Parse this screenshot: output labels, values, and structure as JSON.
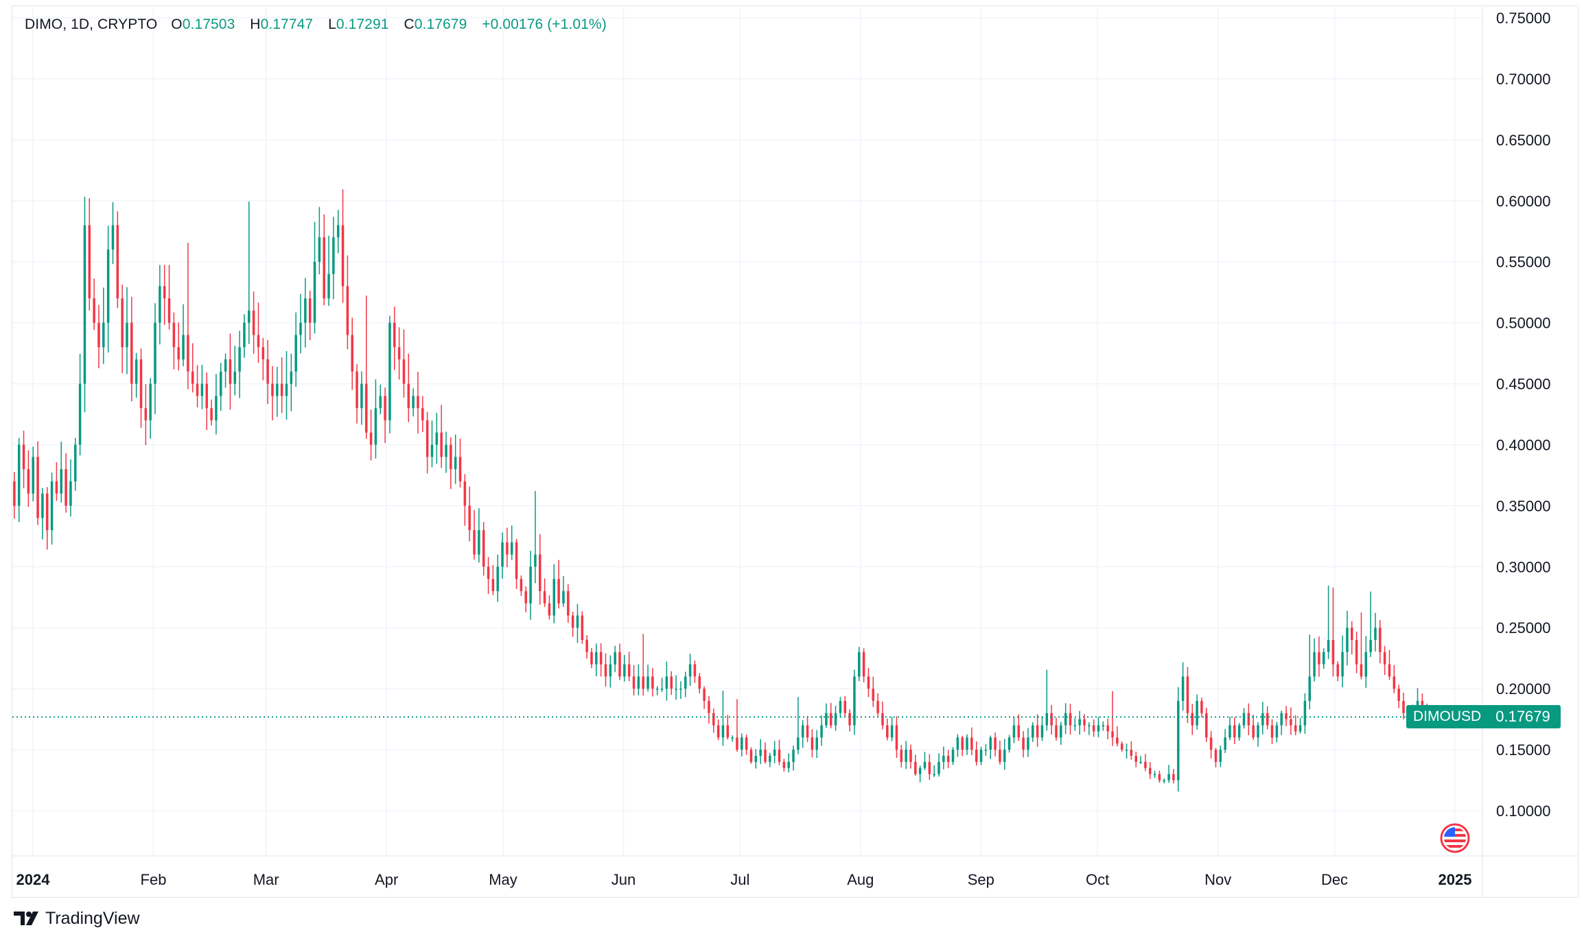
{
  "legend": {
    "symbol": "DIMO, 1D, CRYPTO",
    "o_label": "O",
    "o_value": "0.17503",
    "h_label": "H",
    "h_value": "0.17747",
    "l_label": "L",
    "l_value": "0.17291",
    "c_label": "C",
    "c_value": "0.17679",
    "change": "+0.00176 (+1.01%)"
  },
  "price_badge": {
    "label": "DIMOUSD",
    "value": "0.17679"
  },
  "brand": {
    "name": "TradingView"
  },
  "colors": {
    "up": "#089981",
    "down": "#F23645",
    "grid": "#f0f3fa",
    "text": "#131722"
  },
  "chart_data": {
    "type": "candlestick",
    "y_ticks": [
      "0.75000",
      "0.70000",
      "0.65000",
      "0.60000",
      "0.55000",
      "0.50000",
      "0.45000",
      "0.40000",
      "0.35000",
      "0.30000",
      "0.25000",
      "0.20000",
      "0.15000",
      "0.10000"
    ],
    "ylim": [
      0.07,
      0.76
    ],
    "x_labels": [
      {
        "label": "2024",
        "day": 0,
        "bold": true
      },
      {
        "label": "Feb",
        "day": 31
      },
      {
        "label": "Mar",
        "day": 60
      },
      {
        "label": "Apr",
        "day": 91
      },
      {
        "label": "May",
        "day": 121
      },
      {
        "label": "Jun",
        "day": 152
      },
      {
        "label": "Jul",
        "day": 182
      },
      {
        "label": "Aug",
        "day": 213
      },
      {
        "label": "Sep",
        "day": 244
      },
      {
        "label": "Oct",
        "day": 274
      },
      {
        "label": "Nov",
        "day": 305
      },
      {
        "label": "Dec",
        "day": 335
      },
      {
        "label": "2025",
        "day": 366,
        "bold": true
      }
    ],
    "last_price": 0.17679,
    "closes": [
      0.37,
      0.35,
      0.4,
      0.38,
      0.36,
      0.39,
      0.34,
      0.36,
      0.33,
      0.37,
      0.36,
      0.38,
      0.35,
      0.37,
      0.4,
      0.45,
      0.58,
      0.52,
      0.5,
      0.48,
      0.5,
      0.56,
      0.58,
      0.52,
      0.48,
      0.5,
      0.45,
      0.47,
      0.43,
      0.42,
      0.45,
      0.5,
      0.53,
      0.52,
      0.5,
      0.48,
      0.47,
      0.49,
      0.46,
      0.45,
      0.44,
      0.45,
      0.43,
      0.42,
      0.44,
      0.46,
      0.47,
      0.45,
      0.46,
      0.48,
      0.5,
      0.51,
      0.49,
      0.48,
      0.47,
      0.45,
      0.44,
      0.45,
      0.44,
      0.45,
      0.46,
      0.49,
      0.5,
      0.52,
      0.5,
      0.55,
      0.57,
      0.52,
      0.54,
      0.57,
      0.58,
      0.53,
      0.49,
      0.46,
      0.43,
      0.45,
      0.41,
      0.4,
      0.43,
      0.44,
      0.42,
      0.5,
      0.48,
      0.47,
      0.45,
      0.43,
      0.44,
      0.43,
      0.42,
      0.39,
      0.4,
      0.41,
      0.39,
      0.4,
      0.38,
      0.39,
      0.37,
      0.35,
      0.33,
      0.31,
      0.33,
      0.3,
      0.29,
      0.28,
      0.3,
      0.32,
      0.31,
      0.32,
      0.29,
      0.28,
      0.27,
      0.3,
      0.31,
      0.28,
      0.27,
      0.26,
      0.29,
      0.27,
      0.28,
      0.26,
      0.25,
      0.26,
      0.24,
      0.23,
      0.22,
      0.23,
      0.22,
      0.21,
      0.22,
      0.23,
      0.21,
      0.22,
      0.21,
      0.2,
      0.21,
      0.2,
      0.21,
      0.2,
      0.2,
      0.2,
      0.21,
      0.2,
      0.2,
      0.2,
      0.21,
      0.22,
      0.21,
      0.2,
      0.19,
      0.18,
      0.17,
      0.16,
      0.17,
      0.16,
      0.16,
      0.15,
      0.16,
      0.15,
      0.14,
      0.145,
      0.15,
      0.14,
      0.145,
      0.15,
      0.14,
      0.135,
      0.14,
      0.15,
      0.16,
      0.17,
      0.16,
      0.15,
      0.16,
      0.17,
      0.18,
      0.17,
      0.18,
      0.19,
      0.18,
      0.17,
      0.21,
      0.23,
      0.21,
      0.2,
      0.19,
      0.18,
      0.17,
      0.16,
      0.17,
      0.15,
      0.14,
      0.15,
      0.14,
      0.13,
      0.135,
      0.14,
      0.13,
      0.13,
      0.14,
      0.145,
      0.14,
      0.15,
      0.16,
      0.15,
      0.16,
      0.15,
      0.14,
      0.15,
      0.15,
      0.16,
      0.15,
      0.14,
      0.15,
      0.16,
      0.17,
      0.16,
      0.15,
      0.16,
      0.17,
      0.16,
      0.17,
      0.18,
      0.17,
      0.16,
      0.17,
      0.18,
      0.17,
      0.17,
      0.175,
      0.17,
      0.17,
      0.165,
      0.17,
      0.17,
      0.165,
      0.16,
      0.155,
      0.15,
      0.15,
      0.145,
      0.14,
      0.14,
      0.135,
      0.13,
      0.13,
      0.125,
      0.125,
      0.13,
      0.125,
      0.19,
      0.21,
      0.18,
      0.17,
      0.19,
      0.18,
      0.16,
      0.15,
      0.14,
      0.15,
      0.16,
      0.17,
      0.16,
      0.17,
      0.18,
      0.17,
      0.16,
      0.17,
      0.18,
      0.17,
      0.16,
      0.17,
      0.18,
      0.175,
      0.17,
      0.165,
      0.17,
      0.19,
      0.21,
      0.23,
      0.22,
      0.23,
      0.24,
      0.22,
      0.21,
      0.23,
      0.25,
      0.24,
      0.22,
      0.21,
      0.23,
      0.24,
      0.25,
      0.23,
      0.22,
      0.21,
      0.2,
      0.19,
      0.18,
      0.18,
      0.185,
      0.19,
      0.185,
      0.18,
      0.17679
    ]
  }
}
